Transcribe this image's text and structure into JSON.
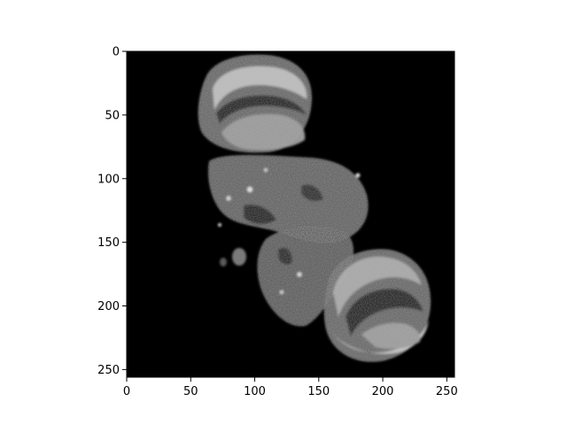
{
  "figure": {
    "image_description_colors": {
      "background": "#000000",
      "frame": "#000000",
      "page": "#ffffff"
    },
    "axes": {
      "xlim": [
        0,
        256
      ],
      "ylim": [
        256,
        0
      ],
      "x_ticks": [
        {
          "value": 0,
          "label": "0"
        },
        {
          "value": 50,
          "label": "50"
        },
        {
          "value": 100,
          "label": "100"
        },
        {
          "value": 150,
          "label": "150"
        },
        {
          "value": 200,
          "label": "200"
        },
        {
          "value": 250,
          "label": "250"
        }
      ],
      "y_ticks": [
        {
          "value": 0,
          "label": "0"
        },
        {
          "value": 50,
          "label": "50"
        },
        {
          "value": 100,
          "label": "100"
        },
        {
          "value": 150,
          "label": "150"
        },
        {
          "value": 200,
          "label": "200"
        },
        {
          "value": 250,
          "label": "250"
        }
      ]
    },
    "image": {
      "kind": "grayscale-mri-slice",
      "colormap": "gray"
    }
  }
}
